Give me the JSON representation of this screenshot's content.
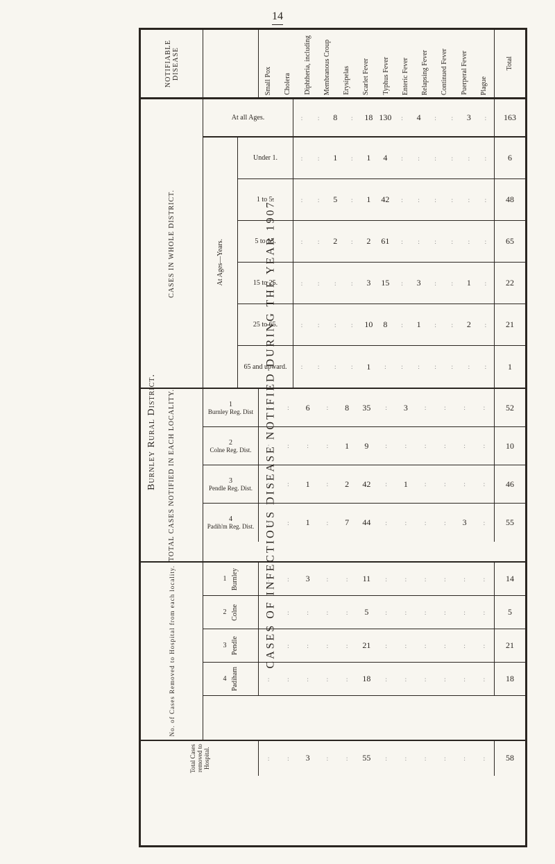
{
  "page_number": "14",
  "main_title": "CASES OF INFECTIOUS DISEASE NOTIFIED DURING THE YEAR 1907.",
  "subtitle": "Burnley Rural District.",
  "notifiable_label": "NOTIFIABLE DISEASE",
  "diseases": [
    "Small Pox",
    "Cholera",
    "Diphtheria, including",
    "Membranous Croup",
    "Erysipelas",
    "Scarlet Fever",
    "Typhus Fever",
    "Enteric Fever",
    "Relapsing Fever",
    "Continued Fever",
    "Puerperal Fever",
    "Plague"
  ],
  "total_label": "Total",
  "whole_district_label": "CASES IN WHOLE DISTRICT.",
  "at_all_ages_label": "At all Ages.",
  "at_ages_label": "At Ages—Years.",
  "age_groups": [
    {
      "label": "Under 1.",
      "values": [
        "",
        "",
        "1",
        "",
        "1",
        "4",
        "",
        "",
        "",
        "",
        "",
        ""
      ],
      "total": "6"
    },
    {
      "label": "1 to 5.",
      "values": [
        "",
        "",
        "5",
        "",
        "1",
        "42",
        "",
        "",
        "",
        "",
        "",
        ""
      ],
      "total": "48"
    },
    {
      "label": "5 to 15.",
      "values": [
        "",
        "",
        "2",
        "",
        "2",
        "61",
        "",
        "",
        "",
        "",
        "",
        ""
      ],
      "total": "65"
    },
    {
      "label": "15 to 25.",
      "values": [
        "",
        "",
        "",
        "",
        "3",
        "15",
        "",
        "3",
        "",
        "",
        "1",
        ""
      ],
      "total": "22"
    },
    {
      "label": "25 to 65.",
      "values": [
        "",
        "",
        "",
        "",
        "10",
        "8",
        "",
        "1",
        "",
        "",
        "2",
        ""
      ],
      "total": "21"
    },
    {
      "label": "65 and upward.",
      "values": [
        "",
        "",
        "",
        "",
        "1",
        "",
        "",
        "",
        "",
        "",
        "",
        ""
      ],
      "total": "1"
    }
  ],
  "at_all_ages_values": [
    "",
    "",
    "8",
    "",
    "18",
    "130",
    "",
    "4",
    "",
    "",
    "3",
    ""
  ],
  "at_all_ages_total": "163",
  "locality_label": "TOTAL CASES NOTIFIED IN EACH LOCALITY.",
  "localities": [
    {
      "num": "1",
      "name": "Burnley Reg. Dist",
      "values": [
        "",
        "",
        "6",
        "",
        "8",
        "35",
        "",
        "3",
        "",
        "",
        "",
        ""
      ],
      "total": "52"
    },
    {
      "num": "2",
      "name": "Colne Reg. Dist.",
      "values": [
        "",
        "",
        "",
        "",
        "1",
        "9",
        "",
        "",
        "",
        "",
        "",
        ""
      ],
      "total": "10"
    },
    {
      "num": "3",
      "name": "Pendle Reg. Dist.",
      "values": [
        "",
        "",
        "1",
        "",
        "2",
        "42",
        "",
        "1",
        "",
        "",
        "",
        ""
      ],
      "total": "46"
    },
    {
      "num": "4",
      "name": "Padih'm Reg. Dist.",
      "values": [
        "",
        "",
        "1",
        "",
        "7",
        "44",
        "",
        "",
        "",
        "",
        "3",
        ""
      ],
      "total": "55"
    }
  ],
  "hospital_label": "No. of Cases Removed to Hospital from each locality.",
  "hospital_rows": [
    {
      "num": "1",
      "name": "Burnley",
      "values": [
        "",
        "",
        "3",
        "",
        "",
        "11",
        "",
        "",
        "",
        "",
        "",
        ""
      ],
      "total": "14"
    },
    {
      "num": "2",
      "name": "Colne",
      "values": [
        "",
        "",
        "",
        "",
        "",
        "5",
        "",
        "",
        "",
        "",
        "",
        ""
      ],
      "total": "5"
    },
    {
      "num": "3",
      "name": "Pendle",
      "values": [
        "",
        "",
        "",
        "",
        "",
        "21",
        "",
        "",
        "",
        "",
        "",
        ""
      ],
      "total": "21"
    },
    {
      "num": "4",
      "name": "Padiham",
      "values": [
        "",
        "",
        "",
        "",
        "",
        "18",
        "",
        "",
        "",
        "",
        "",
        ""
      ],
      "total": "18"
    }
  ],
  "hospital_total_label": "Total Cases removed to Hospital.",
  "hospital_total_values": [
    "",
    "",
    "3",
    "",
    "",
    "55",
    "",
    "",
    "",
    "",
    "",
    ""
  ],
  "hospital_total_total": "58"
}
